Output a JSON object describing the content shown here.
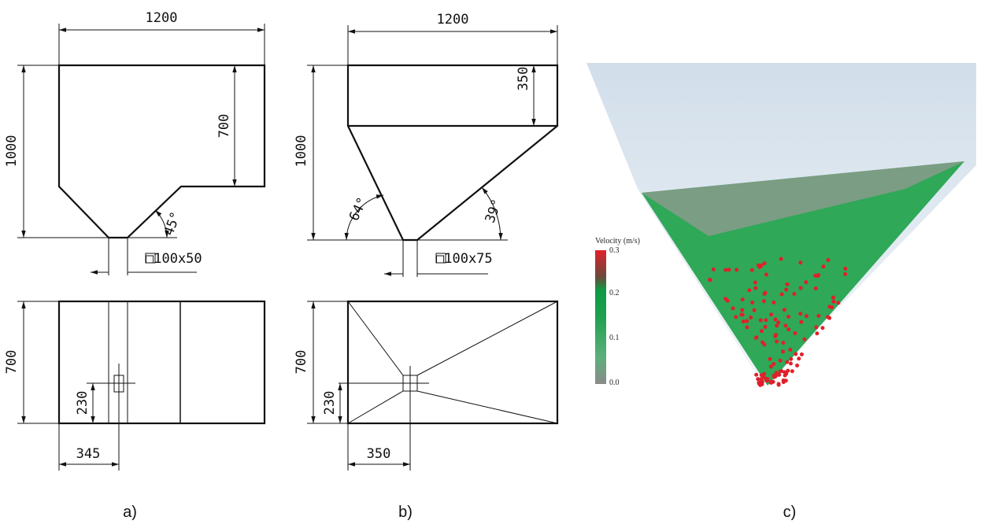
{
  "panel_a": {
    "label": "a)",
    "front": {
      "width": "1200",
      "height": "1000",
      "upper_height": "700",
      "angle": "45°",
      "outlet": "□100x50"
    },
    "plan": {
      "depth": "700",
      "outlet_y": "230",
      "outlet_x": "345"
    }
  },
  "panel_b": {
    "label": "b)",
    "front": {
      "width": "1200",
      "height": "1000",
      "upper_height": "350",
      "angle_left": "64°",
      "angle_right": "39°",
      "outlet": "□100x75"
    },
    "plan": {
      "depth": "700",
      "outlet_y": "230",
      "outlet_x": "350"
    }
  },
  "panel_c": {
    "label": "c)",
    "colorbar": {
      "title": "Velocity (m/s)",
      "ticks": [
        "0.3",
        "0.2",
        "0.1",
        "0.0"
      ]
    }
  }
}
